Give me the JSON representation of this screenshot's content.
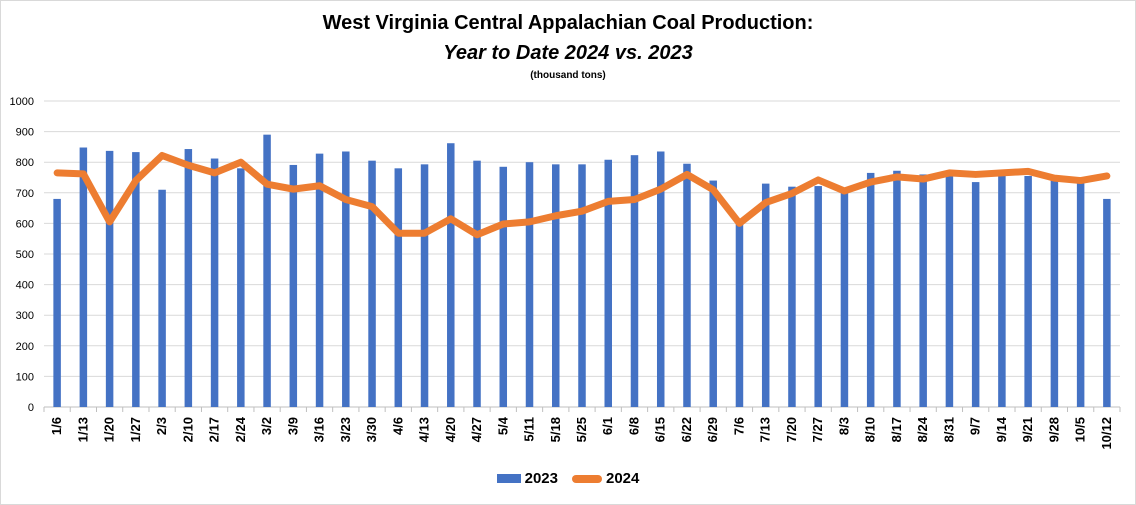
{
  "chart_data": {
    "type": "bar+line",
    "title": "West Virginia Central Appalachian Coal Production:",
    "subtitle": "Year to Date 2024 vs. 2023",
    "unit_note": "(thousand tons)",
    "xlabel": "",
    "ylabel": "",
    "ylim": [
      0,
      1000
    ],
    "yticks": [
      0,
      100,
      200,
      300,
      400,
      500,
      600,
      700,
      800,
      900,
      1000
    ],
    "grid": true,
    "legend_position": "bottom",
    "categories": [
      "1/6",
      "1/13",
      "1/20",
      "1/27",
      "2/3",
      "2/10",
      "2/17",
      "2/24",
      "3/2",
      "3/9",
      "3/16",
      "3/23",
      "3/30",
      "4/6",
      "4/13",
      "4/20",
      "4/27",
      "5/4",
      "5/11",
      "5/18",
      "5/25",
      "6/1",
      "6/8",
      "6/15",
      "6/22",
      "6/29",
      "7/6",
      "7/13",
      "7/20",
      "7/27",
      "8/3",
      "8/10",
      "8/17",
      "8/24",
      "8/31",
      "9/7",
      "9/14",
      "9/21",
      "9/28",
      "10/5",
      "10/12"
    ],
    "series": [
      {
        "name": "2023",
        "type": "bar",
        "color": "#4472c4",
        "values": [
          680,
          848,
          837,
          833,
          710,
          843,
          812,
          780,
          890,
          791,
          828,
          835,
          805,
          780,
          793,
          862,
          805,
          785,
          800,
          793,
          793,
          808,
          823,
          835,
          795,
          740,
          605,
          730,
          720,
          722,
          707,
          765,
          772,
          760,
          757,
          735,
          757,
          755,
          745,
          732,
          680
        ]
      },
      {
        "name": "2024",
        "type": "line",
        "color": "#ed7d31",
        "values": [
          765,
          762,
          605,
          740,
          822,
          790,
          765,
          800,
          728,
          712,
          723,
          678,
          655,
          568,
          568,
          615,
          563,
          598,
          605,
          625,
          640,
          672,
          678,
          712,
          760,
          710,
          600,
          668,
          698,
          742,
          706,
          735,
          752,
          745,
          765,
          760,
          765,
          770,
          748,
          740,
          755
        ]
      }
    ]
  }
}
